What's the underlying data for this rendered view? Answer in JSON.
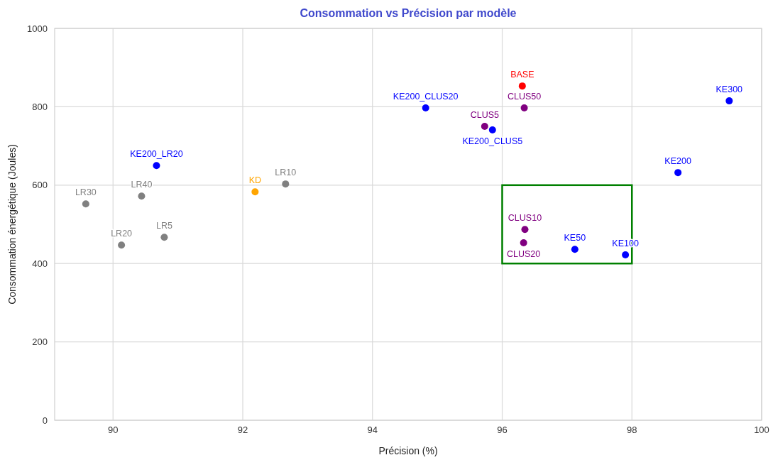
{
  "chart_data": {
    "type": "scatter",
    "title": "Consommation vs Précision par modèle",
    "xlabel": "Précision (%)",
    "ylabel": "Consommation énergétique (Joules)",
    "xlim": [
      89.1,
      100
    ],
    "xticks": [
      90,
      92,
      94,
      96,
      98,
      100
    ],
    "ylim": [
      0,
      1000
    ],
    "yticks": [
      0,
      200,
      400,
      600,
      800,
      1000
    ],
    "grid": true,
    "marker": "circle",
    "series": [
      {
        "name": "LR30",
        "color": "#808080",
        "x": [
          89.58
        ],
        "values": [
          552
        ]
      },
      {
        "name": "LR20",
        "color": "#808080",
        "x": [
          90.13
        ],
        "values": [
          447
        ]
      },
      {
        "name": "LR40",
        "color": "#808080",
        "x": [
          90.44
        ],
        "values": [
          572
        ]
      },
      {
        "name": "LR5",
        "color": "#808080",
        "x": [
          90.79
        ],
        "values": [
          467
        ]
      },
      {
        "name": "KE200_LR20",
        "color": "#0000ff",
        "x": [
          90.67
        ],
        "values": [
          650
        ]
      },
      {
        "name": "KD",
        "color": "#ffa500",
        "x": [
          92.19
        ],
        "values": [
          583
        ]
      },
      {
        "name": "LR10",
        "color": "#808080",
        "x": [
          92.66
        ],
        "values": [
          603
        ]
      },
      {
        "name": "KE200_CLUS20",
        "color": "#0000ff",
        "x": [
          94.82
        ],
        "values": [
          797
        ]
      },
      {
        "name": "CLUS5",
        "color": "#800080",
        "x": [
          95.73
        ],
        "values": [
          750
        ]
      },
      {
        "name": "KE200_CLUS5",
        "color": "#0000ff",
        "x": [
          95.85
        ],
        "values": [
          741
        ]
      },
      {
        "name": "BASE",
        "color": "#ff0000",
        "x": [
          96.31
        ],
        "values": [
          853
        ]
      },
      {
        "name": "CLUS50",
        "color": "#800080",
        "x": [
          96.34
        ],
        "values": [
          797
        ]
      },
      {
        "name": "KE300",
        "color": "#0000ff",
        "x": [
          99.5
        ],
        "values": [
          815
        ]
      },
      {
        "name": "KE200",
        "color": "#0000ff",
        "x": [
          98.71
        ],
        "values": [
          632
        ]
      },
      {
        "name": "CLUS10",
        "color": "#800080",
        "x": [
          96.35
        ],
        "values": [
          487
        ]
      },
      {
        "name": "CLUS20",
        "color": "#800080",
        "x": [
          96.33
        ],
        "values": [
          453
        ]
      },
      {
        "name": "KE50",
        "color": "#0000ff",
        "x": [
          97.12
        ],
        "values": [
          436
        ]
      },
      {
        "name": "KE100",
        "color": "#0000ff",
        "x": [
          97.9
        ],
        "values": [
          422
        ]
      }
    ]
  }
}
